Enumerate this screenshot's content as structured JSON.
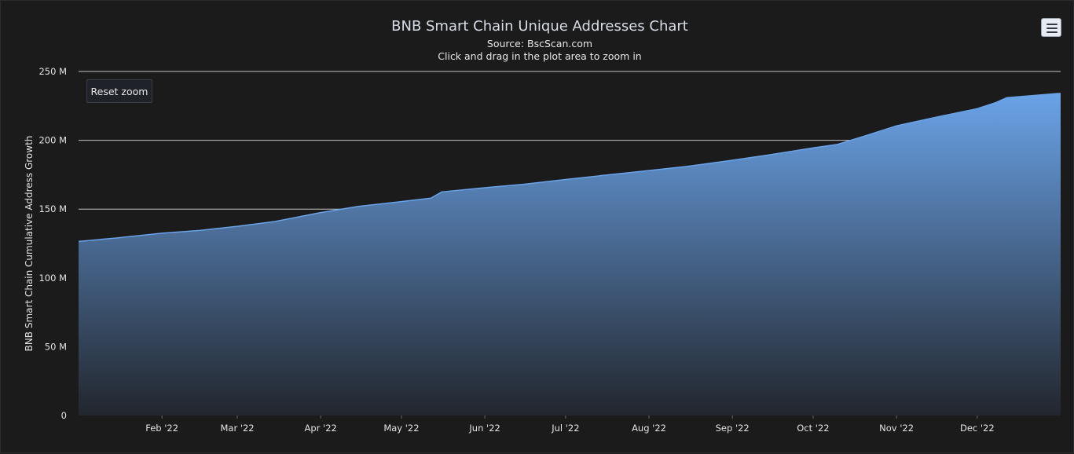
{
  "chart_data": {
    "type": "area",
    "title": "BNB Smart Chain Unique Addresses Chart",
    "subtitle": "Source: BscScan.com",
    "note": "Click and drag in the plot area to zoom in",
    "xlabel": "",
    "ylabel": "BNB Smart Chain Cumulative Address Growth",
    "ylim": [
      0,
      250000000
    ],
    "xlim": [
      "2022-01-01",
      "2022-12-31"
    ],
    "y_ticks": [
      {
        "value": 0,
        "label": "0"
      },
      {
        "value": 50000000,
        "label": "50 M"
      },
      {
        "value": 100000000,
        "label": "100 M"
      },
      {
        "value": 150000000,
        "label": "150 M"
      },
      {
        "value": 200000000,
        "label": "200 M"
      },
      {
        "value": 250000000,
        "label": "250 M"
      }
    ],
    "x_ticks": [
      {
        "date": "2022-02-01",
        "label": "Feb '22"
      },
      {
        "date": "2022-03-01",
        "label": "Mar '22"
      },
      {
        "date": "2022-04-01",
        "label": "Apr '22"
      },
      {
        "date": "2022-05-01",
        "label": "May '22"
      },
      {
        "date": "2022-06-01",
        "label": "Jun '22"
      },
      {
        "date": "2022-07-01",
        "label": "Jul '22"
      },
      {
        "date": "2022-08-01",
        "label": "Aug '22"
      },
      {
        "date": "2022-09-01",
        "label": "Sep '22"
      },
      {
        "date": "2022-10-01",
        "label": "Oct '22"
      },
      {
        "date": "2022-11-01",
        "label": "Nov '22"
      },
      {
        "date": "2022-12-01",
        "label": "Dec '22"
      }
    ],
    "grid": true,
    "legend": "none",
    "series": [
      {
        "x": [
          "2022-01-01",
          "2022-01-15",
          "2022-02-01",
          "2022-02-15",
          "2022-03-01",
          "2022-03-15",
          "2022-04-01",
          "2022-04-15",
          "2022-05-01",
          "2022-05-12",
          "2022-05-16",
          "2022-06-01",
          "2022-06-15",
          "2022-07-01",
          "2022-07-15",
          "2022-08-01",
          "2022-08-15",
          "2022-09-01",
          "2022-09-15",
          "2022-10-01",
          "2022-10-10",
          "2022-10-20",
          "2022-11-01",
          "2022-11-15",
          "2022-12-01",
          "2022-12-08",
          "2022-12-12",
          "2022-12-31"
        ],
        "values": [
          126500000,
          129000000,
          132500000,
          134500000,
          137500000,
          141000000,
          147500000,
          152000000,
          155500000,
          158000000,
          162500000,
          165500000,
          168000000,
          171500000,
          174500000,
          178000000,
          181000000,
          185500000,
          189500000,
          194500000,
          197000000,
          203000000,
          210500000,
          216500000,
          223000000,
          227500000,
          231000000,
          234000000
        ]
      }
    ],
    "colors": {
      "area_top": "#6aa3e8",
      "area_bottom": "#22262d",
      "background": "#1b1b1c"
    }
  },
  "controls": {
    "reset_zoom_label": "Reset zoom",
    "menu_icon": "hamburger-menu-icon"
  }
}
